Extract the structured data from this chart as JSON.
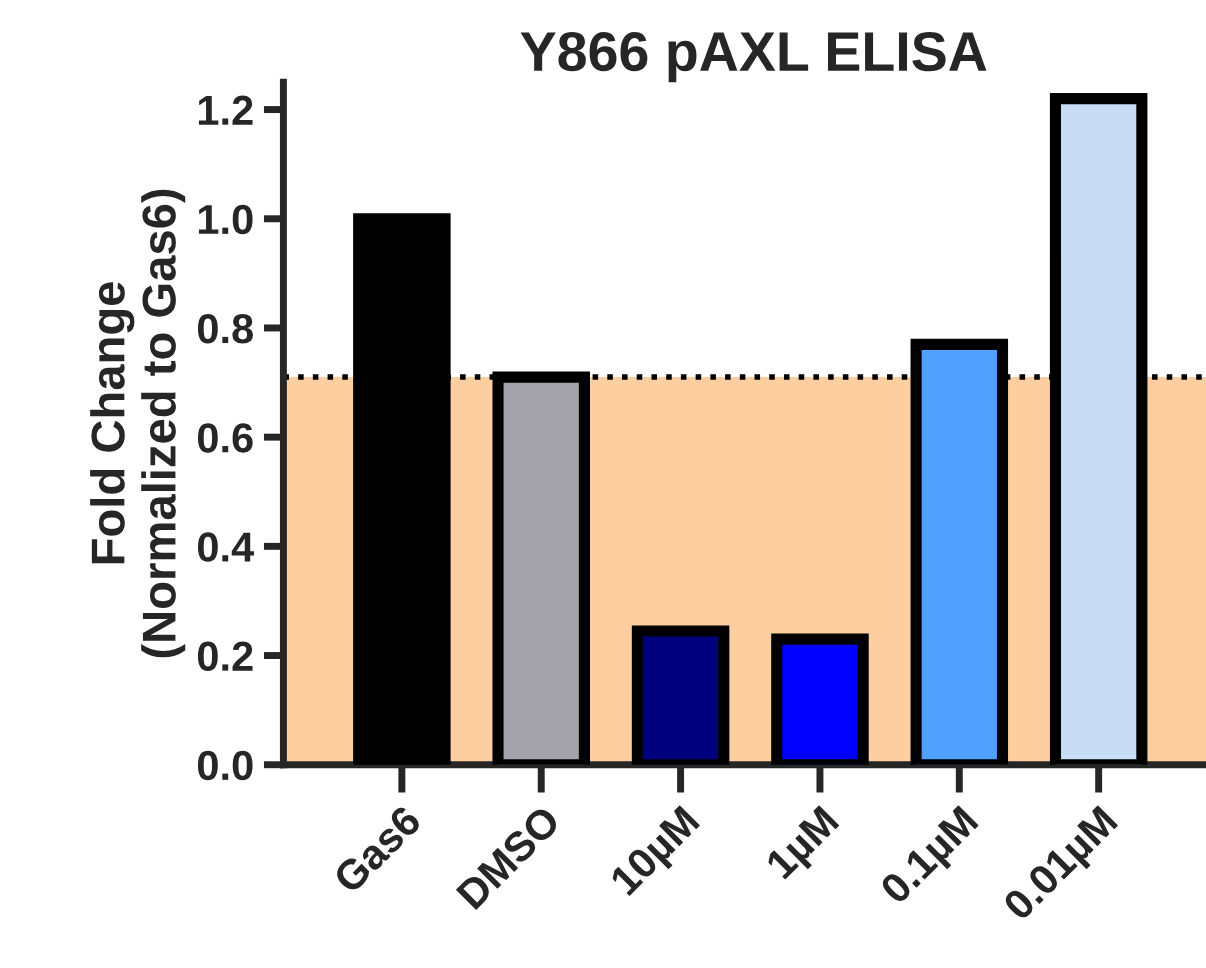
{
  "chart_data": {
    "type": "bar",
    "title": "Y866 pAXL ELISA",
    "ylabel": "Fold Change\n(Normalized to Gas6)",
    "categories": [
      "Gas6",
      "DMSO",
      "10µM",
      "1µM",
      "0.1µM",
      "0.01µM"
    ],
    "values": [
      1.0,
      0.71,
      0.245,
      0.23,
      0.77,
      1.22
    ],
    "colors": [
      "#000000",
      "#a2a2a8",
      "#00007f",
      "#0000ff",
      "#50a0ff",
      "#c8dcf4"
    ],
    "ylim": [
      0,
      1.25
    ],
    "yticks": [
      {
        "value": 0,
        "label": "0.0"
      },
      {
        "value": 0.2,
        "label": "0.2"
      },
      {
        "value": 0.4,
        "label": "0.4"
      },
      {
        "value": 0.6,
        "label": "0.6"
      },
      {
        "value": 0.8,
        "label": "0.8"
      },
      {
        "value": 1.0,
        "label": "1.0"
      },
      {
        "value": 1.2,
        "label": "1.2"
      }
    ],
    "ref_lines": [
      {
        "axis": "y",
        "value": 0.71,
        "line_style": "dotted",
        "color": "#000000"
      }
    ],
    "bands": [
      {
        "axis": "y",
        "from": 0,
        "to": 0.71,
        "color": "#fdcfa0"
      }
    ],
    "grid": false,
    "legend": false
  }
}
